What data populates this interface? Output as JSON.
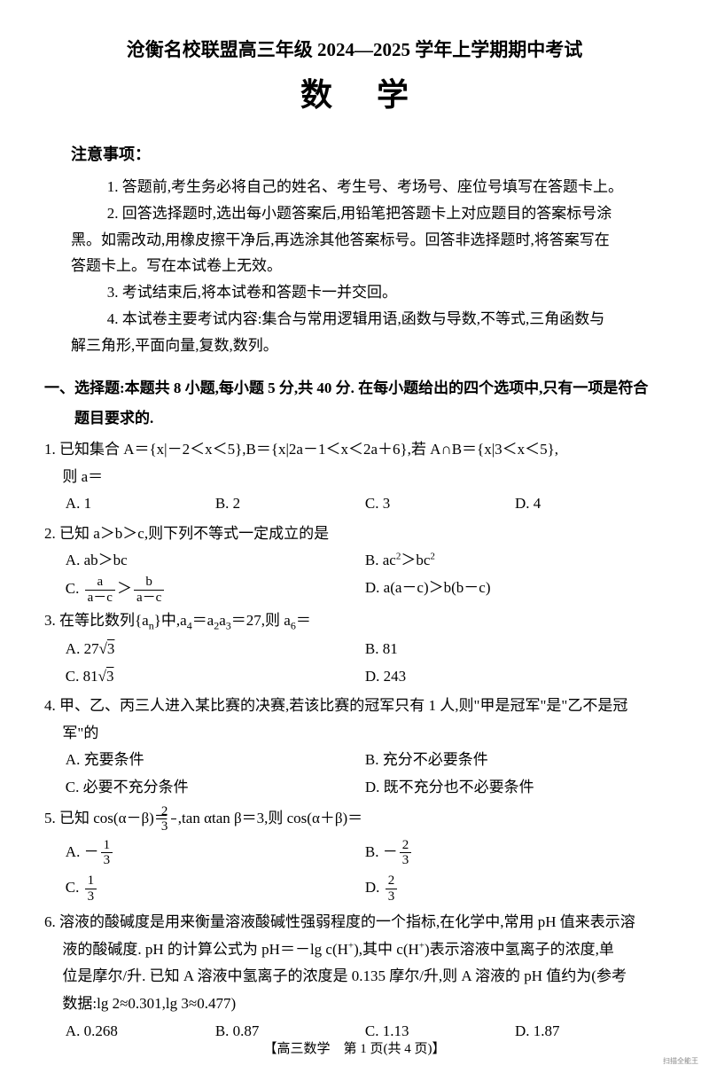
{
  "header": {
    "title": "沧衡名校联盟高三年级 2024—2025 学年上学期期中考试",
    "subject": "数学"
  },
  "notice": {
    "heading": "注意事项：",
    "items": [
      "1. 答题前,考生务必将自己的姓名、考生号、考场号、座位号填写在答题卡上。",
      "2. 回答选择题时,选出每小题答案后,用铅笔把答题卡上对应题目的答案标号涂",
      "黑。如需改动,用橡皮擦干净后,再选涂其他答案标号。回答非选择题时,将答案写在",
      "答题卡上。写在本试卷上无效。",
      "3. 考试结束后,将本试卷和答题卡一并交回。",
      "4. 本试卷主要考试内容:集合与常用逻辑用语,函数与导数,不等式,三角函数与",
      "解三角形,平面向量,复数,数列。"
    ]
  },
  "section1": {
    "title": "一、选择题:本题共 8 小题,每小题 5 分,共 40 分. 在每小题给出的四个选项中,只有一项是符合",
    "title_cont": "题目要求的."
  },
  "q1": {
    "text": "1. 已知集合 A＝{x|－2＜x＜5},B＝{x|2a－1＜x＜2a＋6},若 A∩B＝{x|3＜x＜5},",
    "cont": "则 a＝",
    "optA": "A. 1",
    "optB": "B. 2",
    "optC": "C. 3",
    "optD": "D. 4"
  },
  "q2": {
    "text": "2. 已知 a＞b＞c,则下列不等式一定成立的是",
    "optA": "A. ab＞bc",
    "optB_pre": "B. ac",
    "optB_mid": "＞bc",
    "optC_pre": "C. ",
    "optD": "D. a(a－c)＞b(b－c)"
  },
  "q3": {
    "text_pre": "3. 在等比数列{a",
    "text_mid": "}中,a",
    "text_mid2": "＝a",
    "text_mid3": "a",
    "text_mid4": "＝27,则 a",
    "text_end": "＝",
    "optA_pre": "A. 27",
    "optA_sqrt": "3",
    "optB": "B. 81",
    "optC_pre": "C. 81",
    "optC_sqrt": "3",
    "optD": "D. 243"
  },
  "q4": {
    "text": "4. 甲、乙、丙三人进入某比赛的决赛,若该比赛的冠军只有 1 人,则\"甲是冠军\"是\"乙不是冠",
    "cont": "军\"的",
    "optA": "A. 充要条件",
    "optB": "B. 充分不必要条件",
    "optC": "C. 必要不充分条件",
    "optD": "D. 既不充分也不必要条件"
  },
  "q5": {
    "text_pre": "5. 已知 cos(α－β)＝",
    "text_mid": ",tan αtan β＝3,则 cos(α＋β)＝",
    "optA_pre": "A. －",
    "optB_pre": "B. －",
    "optC_pre": "C. ",
    "optD_pre": "D. "
  },
  "q6": {
    "line1": "6. 溶液的酸碱度是用来衡量溶液酸碱性强弱程度的一个指标,在化学中,常用 pH 值来表示溶",
    "line2_pre": "液的酸碱度. pH 的计算公式为 pH＝－lg c(H",
    "line2_mid": "),其中 c(H",
    "line2_end": ")表示溶液中氢离子的浓度,单",
    "line3": "位是摩尔/升. 已知 A 溶液中氢离子的浓度是 0.135 摩尔/升,则 A 溶液的 pH 值约为(参考",
    "line4": "数据:lg 2≈0.301,lg 3≈0.477)",
    "optA": "A. 0.268",
    "optB": "B. 0.87",
    "optC": "C. 1.13",
    "optD": "D. 1.87"
  },
  "footer": "【高三数学　第 1 页(共 4 页)】",
  "corner": "扫描全能王"
}
